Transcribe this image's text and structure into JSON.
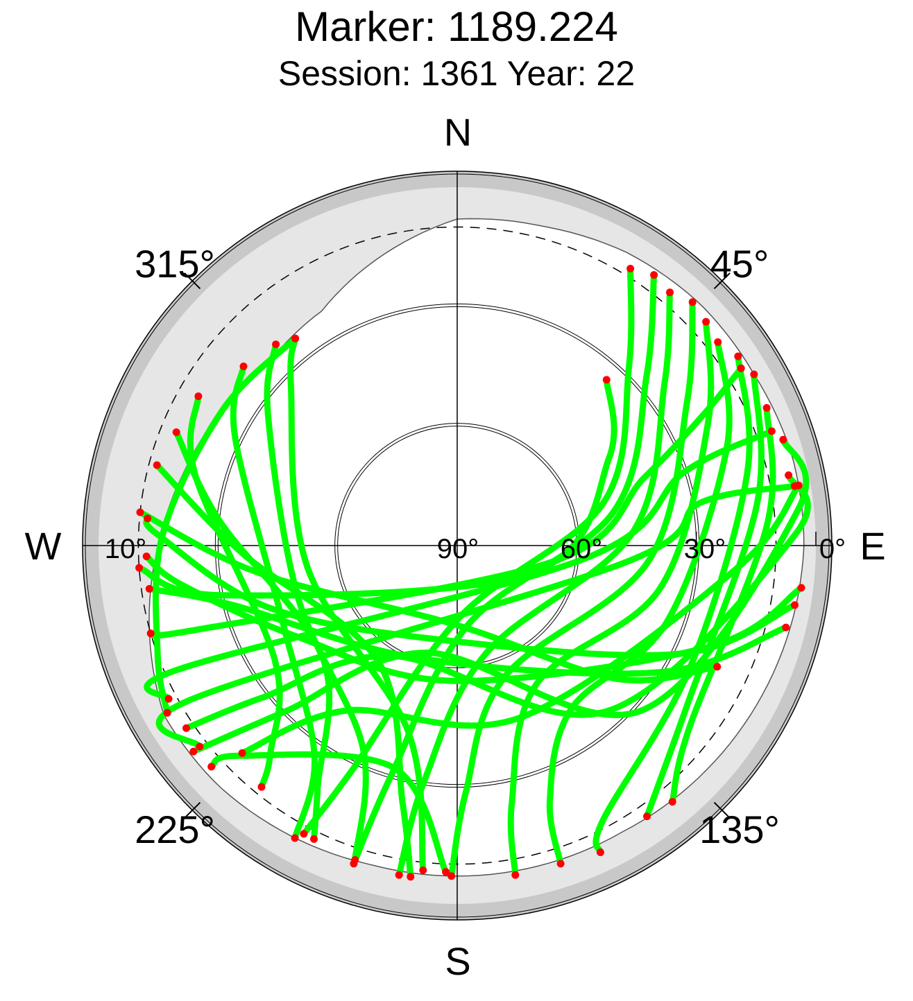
{
  "title": "Marker: 1189.224",
  "subtitle": "Session: 1361 Year: 22",
  "chart_data": {
    "type": "scatter",
    "projection": "polar-skyplot",
    "radial_axis": "elevation",
    "angular_axis": "azimuth",
    "elevation_range": [
      0,
      90
    ],
    "grid": true,
    "compass_labels": {
      "north": "N",
      "east": "E",
      "south": "S",
      "west": "W"
    },
    "azimuth_tick_labels": [
      "45°",
      "135°",
      "225°",
      "315°"
    ],
    "elevation_tick_labels": [
      "0°",
      "30°",
      "60°",
      "90°",
      "10°"
    ],
    "elevation_rings": [
      0,
      30,
      60
    ],
    "elevation_mask_deg": 10,
    "obstruction_horizon": [
      {
        "az": 0,
        "el": 8
      },
      {
        "az": 15,
        "el": 7
      },
      {
        "az": 30,
        "el": 5
      },
      {
        "az": 45,
        "el": 4
      },
      {
        "az": 60,
        "el": 4
      },
      {
        "az": 75,
        "el": 3
      },
      {
        "az": 90,
        "el": 3
      },
      {
        "az": 105,
        "el": 4
      },
      {
        "az": 120,
        "el": 5
      },
      {
        "az": 135,
        "el": 6
      },
      {
        "az": 150,
        "el": 7
      },
      {
        "az": 165,
        "el": 7
      },
      {
        "az": 180,
        "el": 7
      },
      {
        "az": 195,
        "el": 7
      },
      {
        "az": 210,
        "el": 6
      },
      {
        "az": 225,
        "el": 5
      },
      {
        "az": 240,
        "el": 5
      },
      {
        "az": 255,
        "el": 10
      },
      {
        "az": 270,
        "el": 15
      },
      {
        "az": 285,
        "el": 19
      },
      {
        "az": 300,
        "el": 22
      },
      {
        "az": 315,
        "el": 24
      },
      {
        "az": 330,
        "el": 22
      },
      {
        "az": 345,
        "el": 15
      }
    ],
    "colors": {
      "track": "#00ff00",
      "endpoint": "#ff0000",
      "obstruction_light": "#e6e6e6",
      "obstruction_dark": "#c8c8c8"
    },
    "series": [
      {
        "values": [
          {
            "az": 32,
            "el": 8
          },
          {
            "az": 44,
            "el": 28
          },
          {
            "az": 74,
            "el": 52
          },
          {
            "az": 178,
            "el": 72
          },
          {
            "az": 205,
            "el": 28
          },
          {
            "az": 208,
            "el": 8
          }
        ]
      },
      {
        "values": [
          {
            "az": 36,
            "el": 6
          },
          {
            "az": 48,
            "el": 26
          },
          {
            "az": 78,
            "el": 50
          },
          {
            "az": 172,
            "el": 70
          },
          {
            "az": 196,
            "el": 30
          },
          {
            "az": 198,
            "el": 6
          }
        ]
      },
      {
        "values": [
          {
            "az": 40,
            "el": 7
          },
          {
            "az": 52,
            "el": 24
          },
          {
            "az": 86,
            "el": 46
          },
          {
            "az": 165,
            "el": 62
          },
          {
            "az": 188,
            "el": 30
          },
          {
            "az": 190,
            "el": 6
          }
        ]
      },
      {
        "values": [
          {
            "az": 44,
            "el": 5
          },
          {
            "az": 58,
            "el": 22
          },
          {
            "az": 95,
            "el": 42
          },
          {
            "az": 160,
            "el": 55
          },
          {
            "az": 178,
            "el": 28
          },
          {
            "az": 181,
            "el": 7
          }
        ]
      },
      {
        "values": [
          {
            "az": 48,
            "el": 6
          },
          {
            "az": 64,
            "el": 20
          },
          {
            "az": 102,
            "el": 38
          },
          {
            "az": 150,
            "el": 50
          },
          {
            "az": 168,
            "el": 24
          },
          {
            "az": 170,
            "el": 6
          }
        ]
      },
      {
        "values": [
          {
            "az": 52,
            "el": 7
          },
          {
            "az": 70,
            "el": 18
          },
          {
            "az": 110,
            "el": 34
          },
          {
            "az": 145,
            "el": 40
          },
          {
            "az": 160,
            "el": 22
          },
          {
            "az": 162,
            "el": 6
          }
        ]
      },
      {
        "values": [
          {
            "az": 56,
            "el": 5
          },
          {
            "az": 76,
            "el": 15
          },
          {
            "az": 118,
            "el": 24
          },
          {
            "az": 152,
            "el": 12
          },
          {
            "az": 155,
            "el": 5
          }
        ]
      },
      {
        "values": [
          {
            "az": 60,
            "el": 4
          },
          {
            "az": 82,
            "el": 14
          },
          {
            "az": 124,
            "el": 20
          },
          {
            "az": 145,
            "el": 7
          }
        ]
      },
      {
        "values": [
          {
            "az": 66,
            "el": 5
          },
          {
            "az": 86,
            "el": 12
          },
          {
            "az": 128,
            "el": 16
          },
          {
            "az": 140,
            "el": 6
          }
        ]
      },
      {
        "values": [
          {
            "az": 72,
            "el": 4
          },
          {
            "az": 84,
            "el": 4
          },
          {
            "az": 132,
            "el": 28
          },
          {
            "az": 196,
            "el": 62
          },
          {
            "az": 226,
            "el": 30
          },
          {
            "az": 232,
            "el": 6
          }
        ]
      },
      {
        "values": [
          {
            "az": 78,
            "el": 5
          },
          {
            "az": 88,
            "el": 5
          },
          {
            "az": 138,
            "el": 34
          },
          {
            "az": 210,
            "el": 58
          },
          {
            "az": 232,
            "el": 28
          },
          {
            "az": 236,
            "el": 8
          }
        ]
      },
      {
        "values": [
          {
            "az": 80,
            "el": 3
          },
          {
            "az": 95,
            "el": 20
          },
          {
            "az": 160,
            "el": 44
          },
          {
            "az": 214,
            "el": 40
          },
          {
            "az": 226,
            "el": 15
          }
        ]
      },
      {
        "values": [
          {
            "az": 97,
            "el": 3
          },
          {
            "az": 112,
            "el": 22
          },
          {
            "az": 182,
            "el": 56
          },
          {
            "az": 240,
            "el": 44
          },
          {
            "az": 262,
            "el": 20
          },
          {
            "az": 268,
            "el": 12
          }
        ]
      },
      {
        "values": [
          {
            "az": 100,
            "el": 4
          },
          {
            "az": 116,
            "el": 28
          },
          {
            "az": 190,
            "el": 66
          },
          {
            "az": 252,
            "el": 40
          },
          {
            "az": 272,
            "el": 15
          },
          {
            "az": 275,
            "el": 12
          }
        ]
      },
      {
        "values": [
          {
            "az": 104,
            "el": 5
          },
          {
            "az": 122,
            "el": 30
          },
          {
            "az": 200,
            "el": 60
          },
          {
            "az": 255,
            "el": 32
          },
          {
            "az": 262,
            "el": 12
          }
        ]
      },
      {
        "values": [
          {
            "az": 322,
            "el": 24
          },
          {
            "az": 314,
            "el": 32
          },
          {
            "az": 262,
            "el": 52
          },
          {
            "az": 195,
            "el": 42
          },
          {
            "az": 186,
            "el": 8
          }
        ]
      },
      {
        "values": [
          {
            "az": 318,
            "el": 22
          },
          {
            "az": 305,
            "el": 32
          },
          {
            "az": 252,
            "el": 48
          },
          {
            "az": 205,
            "el": 34
          },
          {
            "az": 198,
            "el": 7
          }
        ]
      },
      {
        "values": [
          {
            "az": 310,
            "el": 20
          },
          {
            "az": 296,
            "el": 28
          },
          {
            "az": 245,
            "el": 42
          },
          {
            "az": 214,
            "el": 26
          },
          {
            "az": 209,
            "el": 6
          }
        ]
      },
      {
        "values": [
          {
            "az": 322,
            "el": 24
          },
          {
            "az": 300,
            "el": 22
          },
          {
            "az": 272,
            "el": 16
          },
          {
            "az": 250,
            "el": 10
          },
          {
            "az": 240,
            "el": 6
          }
        ]
      },
      {
        "values": [
          {
            "az": 300,
            "el": 15
          },
          {
            "az": 285,
            "el": 22
          },
          {
            "az": 238,
            "el": 36
          },
          {
            "az": 222,
            "el": 20
          },
          {
            "az": 219,
            "el": 12
          }
        ]
      },
      {
        "values": [
          {
            "az": 292,
            "el": 14
          },
          {
            "az": 276,
            "el": 30
          },
          {
            "az": 230,
            "el": 46
          },
          {
            "az": 210,
            "el": 20
          },
          {
            "az": 206,
            "el": 8
          }
        ]
      },
      {
        "values": [
          {
            "az": 285,
            "el": 12
          },
          {
            "az": 268,
            "el": 36
          },
          {
            "az": 215,
            "el": 55
          },
          {
            "az": 192,
            "el": 24
          },
          {
            "az": 188,
            "el": 6
          }
        ]
      },
      {
        "values": [
          {
            "az": 276,
            "el": 10
          },
          {
            "az": 262,
            "el": 40
          },
          {
            "az": 180,
            "el": 70
          },
          {
            "az": 130,
            "el": 38
          },
          {
            "az": 115,
            "el": 18
          }
        ]
      },
      {
        "values": [
          {
            "az": 266,
            "el": 10
          },
          {
            "az": 258,
            "el": 30
          },
          {
            "az": 110,
            "el": 70
          },
          {
            "az": 60,
            "el": 46
          },
          {
            "az": 42,
            "el": 34
          }
        ]
      },
      {
        "values": [
          {
            "az": 254,
            "el": 10
          },
          {
            "az": 252,
            "el": 22
          },
          {
            "az": 100,
            "el": 66
          },
          {
            "az": 70,
            "el": 40
          },
          {
            "az": 62,
            "el": 20
          },
          {
            "az": 58,
            "el": 6
          }
        ]
      },
      {
        "values": [
          {
            "az": 242,
            "el": 8
          },
          {
            "az": 246,
            "el": 14
          },
          {
            "az": 96,
            "el": 58
          },
          {
            "az": 72,
            "el": 30
          },
          {
            "az": 70,
            "el": 6
          }
        ]
      },
      {
        "values": [
          {
            "az": 232,
            "el": 8
          },
          {
            "az": 240,
            "el": 12
          },
          {
            "az": 96,
            "el": 48
          },
          {
            "az": 80,
            "el": 28
          },
          {
            "az": 80,
            "el": 4
          }
        ]
      },
      {
        "values": [
          {
            "az": 228,
            "el": 7
          },
          {
            "az": 226,
            "el": 14
          },
          {
            "az": 196,
            "el": 32
          },
          {
            "az": 182,
            "el": 8
          }
        ]
      }
    ]
  }
}
